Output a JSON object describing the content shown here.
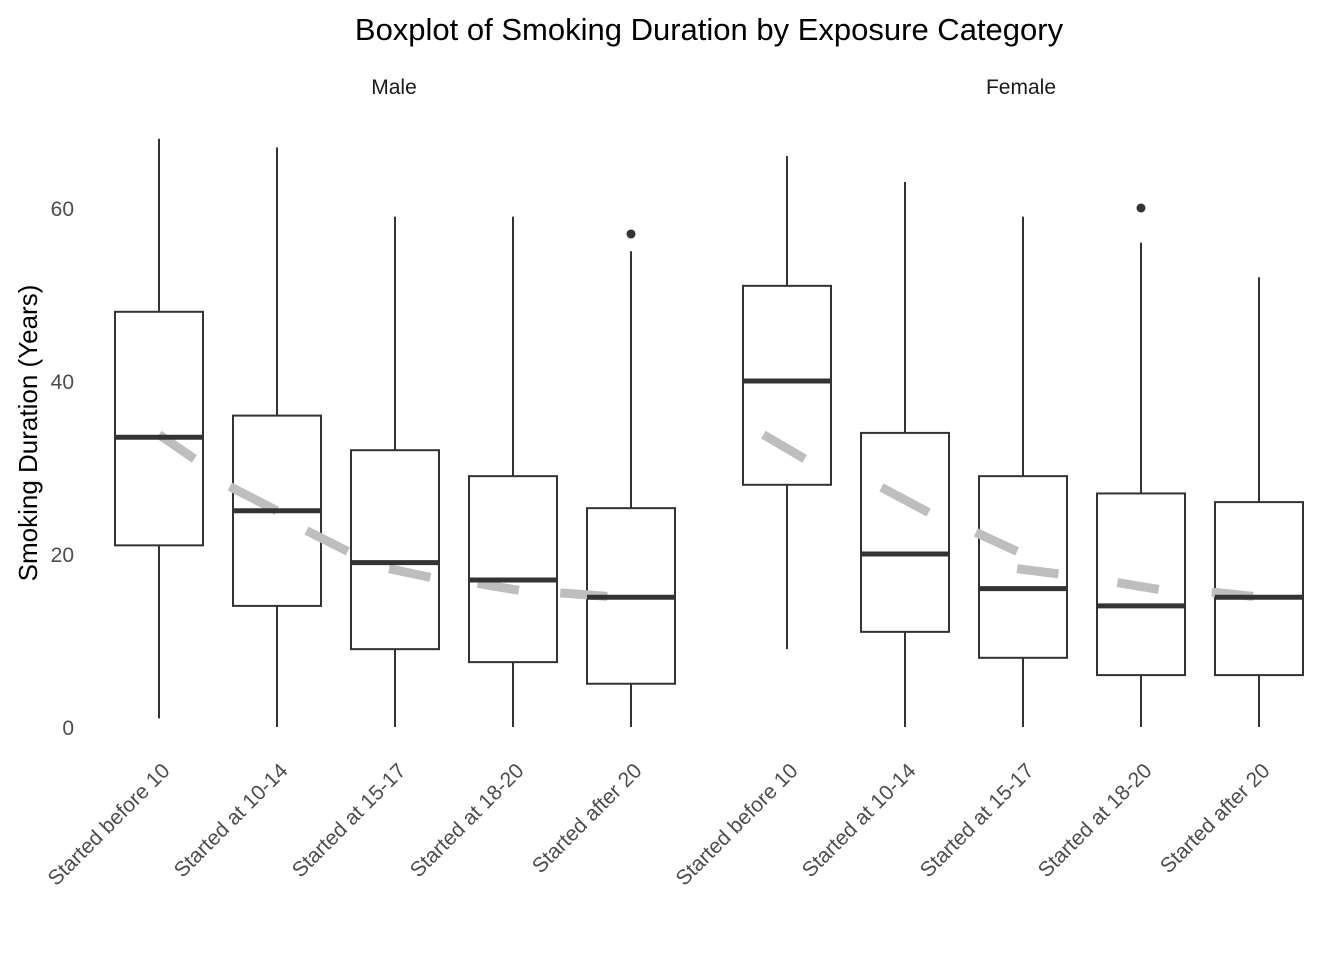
{
  "chart_data": {
    "type": "boxplot",
    "title": "Boxplot of Smoking Duration by Exposure Category",
    "ylabel": "Smoking Duration (Years)",
    "xlabel": "",
    "ylim": [
      -3,
      68
    ],
    "yticks": [
      0,
      20,
      40,
      60
    ],
    "categories": [
      "Started before 10",
      "Started at 10-14",
      "Started at 15-17",
      "Started at 18-20",
      "Started after 20"
    ],
    "colors": {
      "box_stroke": "#333333",
      "median": "#333333",
      "trend": "#bebebe",
      "ytick": "#4d4d4d"
    },
    "panels": [
      {
        "name": "Male",
        "boxes": [
          {
            "category": "Started before 10",
            "min": 1,
            "q1": 21,
            "median": 33.5,
            "q3": 48,
            "max": 68,
            "outliers": []
          },
          {
            "category": "Started at 10-14",
            "min": 0,
            "q1": 14,
            "median": 25,
            "q3": 36,
            "max": 67,
            "outliers": []
          },
          {
            "category": "Started at 15-17",
            "min": 0,
            "q1": 9,
            "median": 19,
            "q3": 32,
            "max": 59,
            "outliers": []
          },
          {
            "category": "Started at 18-20",
            "min": 0,
            "q1": 7.5,
            "median": 17,
            "q3": 29,
            "max": 59,
            "outliers": []
          },
          {
            "category": "Started after 20",
            "min": 0,
            "q1": 5,
            "median": 15,
            "q3": 25.3,
            "max": 55,
            "outliers": [
              57
            ]
          }
        ],
        "trend_line": [
          {
            "x": 1.0,
            "y": 33.8
          },
          {
            "x": 1.3,
            "y": 31.0
          },
          {
            "x": 1.6,
            "y": 27.8
          },
          {
            "x": 2.0,
            "y": 25.0
          },
          {
            "x": 2.25,
            "y": 22.7
          },
          {
            "x": 2.6,
            "y": 20.3
          },
          {
            "x": 2.95,
            "y": 18.3
          },
          {
            "x": 3.3,
            "y": 17.3
          },
          {
            "x": 3.7,
            "y": 16.6
          },
          {
            "x": 4.05,
            "y": 15.8
          },
          {
            "x": 4.4,
            "y": 15.5
          },
          {
            "x": 4.8,
            "y": 15.1
          }
        ]
      },
      {
        "name": "Female",
        "boxes": [
          {
            "category": "Started before 10",
            "min": 9,
            "q1": 28,
            "median": 40,
            "q3": 51,
            "max": 66,
            "outliers": []
          },
          {
            "category": "Started at 10-14",
            "min": 0,
            "q1": 11,
            "median": 20,
            "q3": 34,
            "max": 63,
            "outliers": []
          },
          {
            "category": "Started at 15-17",
            "min": 0,
            "q1": 8,
            "median": 16,
            "q3": 29,
            "max": 59,
            "outliers": []
          },
          {
            "category": "Started at 18-20",
            "min": 0,
            "q1": 6,
            "median": 14,
            "q3": 27,
            "max": 56,
            "outliers": [
              60
            ]
          },
          {
            "category": "Started after 20",
            "min": 0,
            "q1": 6,
            "median": 15,
            "q3": 26,
            "max": 52,
            "outliers": []
          }
        ],
        "trend_line": [
          {
            "x": 0.8,
            "y": 33.8
          },
          {
            "x": 1.15,
            "y": 31.0
          },
          {
            "x": 1.8,
            "y": 27.7
          },
          {
            "x": 2.2,
            "y": 24.8
          },
          {
            "x": 2.6,
            "y": 22.5
          },
          {
            "x": 2.95,
            "y": 20.3
          },
          {
            "x": 2.95,
            "y": 18.3
          },
          {
            "x": 3.3,
            "y": 17.7
          },
          {
            "x": 3.8,
            "y": 16.7
          },
          {
            "x": 4.15,
            "y": 15.9
          },
          {
            "x": 4.6,
            "y": 15.6
          },
          {
            "x": 4.95,
            "y": 15.1
          }
        ]
      }
    ]
  }
}
